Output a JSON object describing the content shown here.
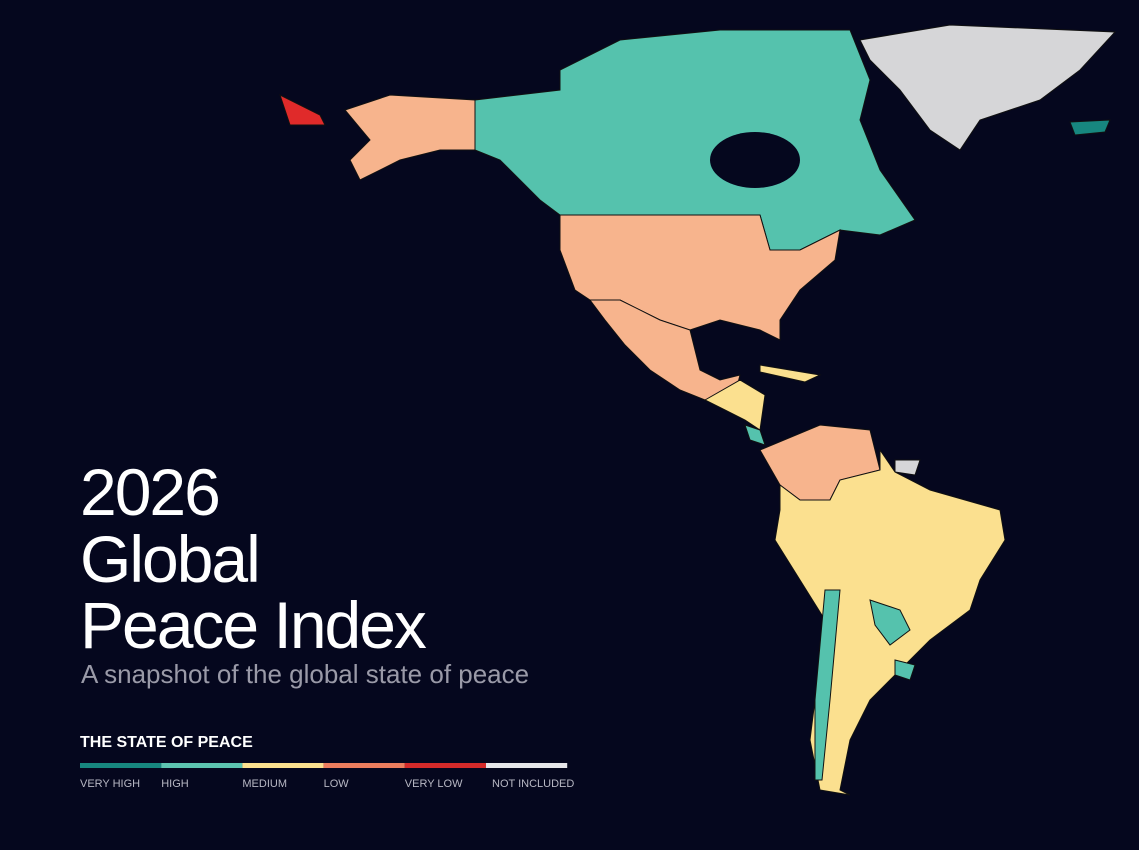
{
  "title_lines": [
    "2026",
    "Global",
    "Peace Index"
  ],
  "subtitle": "A snapshot of the global state of peace",
  "legend": {
    "title": "THE STATE OF PEACE",
    "items": [
      {
        "label": "VERY HIGH",
        "color": "#17877f"
      },
      {
        "label": "HIGH",
        "color": "#5cc4b0"
      },
      {
        "label": "MEDIUM",
        "color": "#fbe08f"
      },
      {
        "label": "LOW",
        "color": "#ec7d5e"
      },
      {
        "label": "VERY LOW",
        "color": "#d42a2a"
      },
      {
        "label": "NOT INCLUDED",
        "color": "#e6e6ea"
      }
    ]
  }
}
